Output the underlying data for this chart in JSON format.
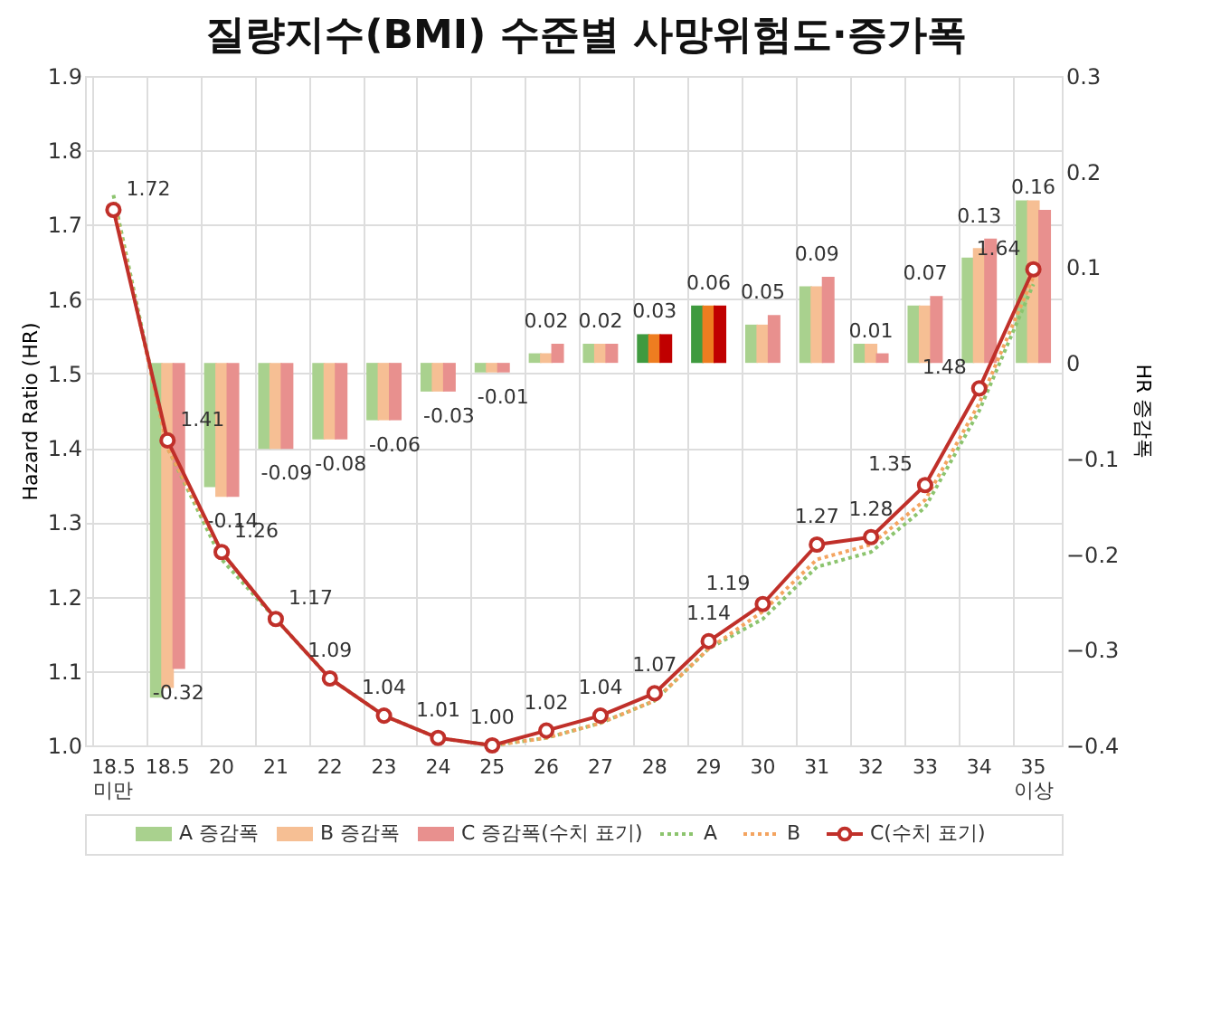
{
  "chart_data": {
    "type": "bar",
    "title": "질량지수(BMI) 수준별 사망위험도·증가폭",
    "ylabel": "Hazard Ratio (HR)",
    "y2label": "HR 증감폭",
    "categories": [
      "18.5 미만",
      "18.5",
      "20",
      "21",
      "22",
      "23",
      "24",
      "25",
      "26",
      "27",
      "28",
      "29",
      "30",
      "31",
      "32",
      "33",
      "34",
      "35 이상"
    ],
    "ylim": [
      1.0,
      1.9
    ],
    "yticks": [
      {
        "value": 1.0,
        "label": "1.0"
      },
      1.1,
      1.2,
      1.3,
      1.4,
      1.5,
      1.6,
      1.7,
      1.8,
      1.9
    ],
    "y2lim": [
      -0.4,
      0.3
    ],
    "y2ticks": [
      -0.4,
      -0.3,
      -0.2,
      -0.1,
      0,
      0.1,
      0.2,
      0.3
    ],
    "grid": true,
    "legend": "bottom",
    "series": [
      {
        "name": "A 증감폭",
        "type": "bar",
        "axis": "y2",
        "color": "#a9d18e",
        "colors": [
          null,
          "#a9d18e",
          "#a9d18e",
          "#a9d18e",
          "#a9d18e",
          "#a9d18e",
          "#a9d18e",
          "#a9d18e",
          "#a9d18e",
          "#a9d18e",
          "#3f9a3f",
          "#3f9a3f",
          "#a9d18e",
          "#a9d18e",
          "#a9d18e",
          "#a9d18e",
          "#a9d18e",
          "#a9d18e"
        ],
        "values": [
          null,
          -0.35,
          -0.13,
          -0.09,
          -0.08,
          -0.06,
          -0.03,
          -0.01,
          0.01,
          0.02,
          0.03,
          0.06,
          0.04,
          0.08,
          0.02,
          0.06,
          0.11,
          0.17
        ]
      },
      {
        "name": "B 증감폭",
        "type": "bar",
        "axis": "y2",
        "color": "#f6bf94",
        "colors": [
          null,
          "#f6bf94",
          "#f6bf94",
          "#f6bf94",
          "#f6bf94",
          "#f6bf94",
          "#f6bf94",
          "#f6bf94",
          "#f6bf94",
          "#f6bf94",
          "#ee7d20",
          "#ee7d20",
          "#f6bf94",
          "#f6bf94",
          "#f6bf94",
          "#f6bf94",
          "#f6bf94",
          "#f6bf94"
        ],
        "values": [
          null,
          -0.34,
          -0.14,
          -0.09,
          -0.08,
          -0.06,
          -0.03,
          -0.01,
          0.01,
          0.02,
          0.03,
          0.06,
          0.04,
          0.08,
          0.02,
          0.06,
          0.12,
          0.17
        ]
      },
      {
        "name": "C 증감폭(수치 표기)",
        "type": "bar",
        "axis": "y2",
        "color": "#e8908e",
        "colors": [
          null,
          "#e8908e",
          "#e8908e",
          "#e8908e",
          "#e8908e",
          "#e8908e",
          "#e8908e",
          "#e8908e",
          "#e8908e",
          "#e8908e",
          "#c00000",
          "#c00000",
          "#e8908e",
          "#e8908e",
          "#e8908e",
          "#e8908e",
          "#e8908e",
          "#e8908e"
        ],
        "values": [
          null,
          -0.32,
          -0.14,
          -0.09,
          -0.08,
          -0.06,
          -0.03,
          -0.01,
          0.02,
          0.02,
          0.03,
          0.06,
          0.05,
          0.09,
          0.01,
          0.07,
          0.13,
          0.16
        ],
        "value_labels": [
          null,
          "-0.32",
          "-0.14",
          "-0.09",
          "-0.08",
          "-0.06",
          "-0.03",
          "-0.01",
          "0.02",
          "0.02",
          "0.03",
          "0.06",
          "0.05",
          "0.09",
          "0.01",
          "0.07",
          "0.13",
          "0.16"
        ]
      },
      {
        "name": "A",
        "type": "line",
        "color": "#8cc46e",
        "line_style": "dotted",
        "marker": "none",
        "values": [
          1.74,
          1.4,
          1.25,
          1.17,
          1.09,
          1.04,
          1.01,
          1.0,
          1.01,
          1.03,
          1.06,
          1.13,
          1.17,
          1.24,
          1.26,
          1.32,
          1.45,
          1.62
        ]
      },
      {
        "name": "B",
        "type": "line",
        "color": "#f4a460",
        "line_style": "dotted",
        "marker": "none",
        "values": [
          1.73,
          1.4,
          1.26,
          1.17,
          1.09,
          1.04,
          1.01,
          1.0,
          1.01,
          1.03,
          1.06,
          1.13,
          1.18,
          1.25,
          1.27,
          1.33,
          1.46,
          1.63
        ]
      },
      {
        "name": "C(수치 표기)",
        "type": "line",
        "color": "#c0302a",
        "line_style": "solid",
        "marker": "circle",
        "values": [
          1.72,
          1.41,
          1.26,
          1.17,
          1.09,
          1.04,
          1.01,
          1.0,
          1.02,
          1.04,
          1.07,
          1.14,
          1.19,
          1.27,
          1.28,
          1.35,
          1.48,
          1.64
        ],
        "value_labels": [
          "1.72",
          "1.41",
          "1.26",
          "1.17",
          "1.09",
          "1.04",
          "1.01",
          "1.00",
          "1.02",
          "1.04",
          "1.07",
          "1.14",
          "1.19",
          "1.27",
          "1.28",
          "1.35",
          "1.48",
          "1.64"
        ]
      }
    ]
  }
}
